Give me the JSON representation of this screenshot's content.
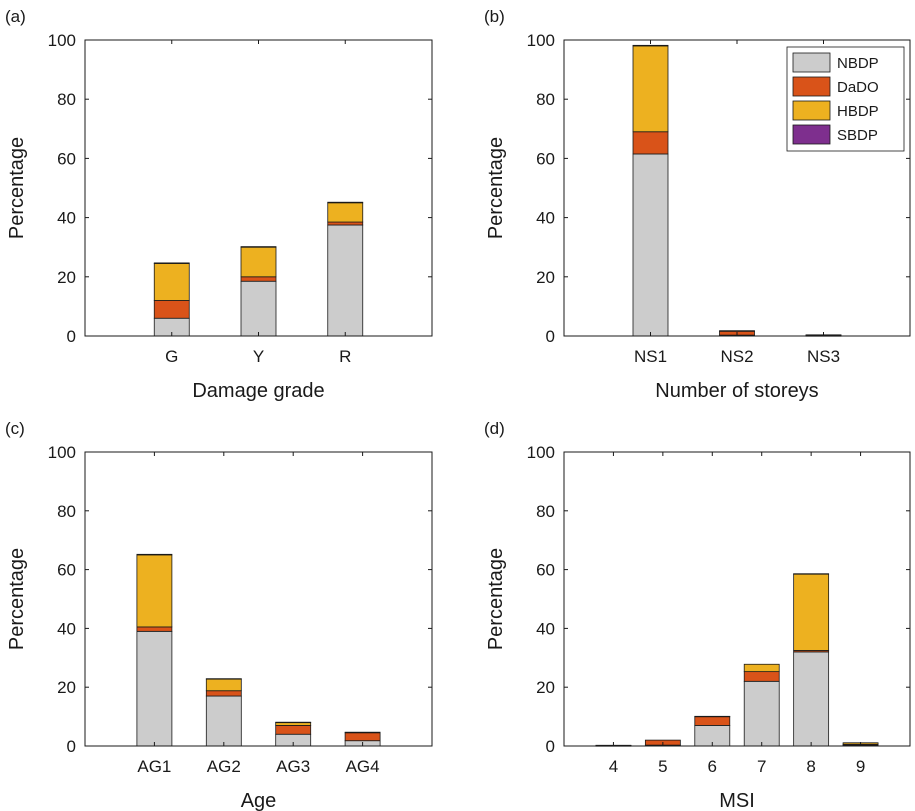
{
  "colors": {
    "NBDP": "#cccccc",
    "DaDO": "#d95319",
    "HBDP": "#edb120",
    "SBDP": "#7e2f8e"
  },
  "legend": {
    "placement": "top-right",
    "entries": [
      "NBDP",
      "DaDO",
      "HBDP",
      "SBDP"
    ]
  },
  "chart_data": [
    {
      "type": "bar",
      "stacked": true,
      "panel_label": "(a)",
      "xlabel": "Damage grade",
      "ylabel": "Percentage",
      "ylim": [
        0,
        100
      ],
      "yticks": [
        "0",
        "20",
        "40",
        "60",
        "80",
        "100"
      ],
      "categories": [
        "G",
        "Y",
        "R"
      ],
      "xlim": [
        0,
        4
      ],
      "series": [
        {
          "name": "NBDP",
          "values": [
            6,
            18.5,
            37.5
          ]
        },
        {
          "name": "DaDO",
          "values": [
            6,
            1.5,
            1
          ]
        },
        {
          "name": "HBDP",
          "values": [
            12.5,
            10,
            6.5
          ]
        },
        {
          "name": "SBDP",
          "values": [
            0.2,
            0.2,
            0.2
          ]
        }
      ]
    },
    {
      "type": "bar",
      "stacked": true,
      "panel_label": "(b)",
      "xlabel": "Number of storeys",
      "ylabel": "Percentage",
      "ylim": [
        0,
        100
      ],
      "yticks": [
        "0",
        "20",
        "40",
        "60",
        "80",
        "100"
      ],
      "categories": [
        "NS1",
        "NS2",
        "NS3"
      ],
      "xlim": [
        0,
        4
      ],
      "legend": true,
      "series": [
        {
          "name": "NBDP",
          "values": [
            61.5,
            0.3,
            0.1
          ]
        },
        {
          "name": "DaDO",
          "values": [
            7.5,
            1.3,
            0.2
          ]
        },
        {
          "name": "HBDP",
          "values": [
            29,
            0.2,
            0.1
          ]
        },
        {
          "name": "SBDP",
          "values": [
            0.2,
            0,
            0
          ]
        }
      ]
    },
    {
      "type": "bar",
      "stacked": true,
      "panel_label": "(c)",
      "xlabel": "Age",
      "ylabel": "Percentage",
      "ylim": [
        0,
        100
      ],
      "yticks": [
        "0",
        "20",
        "40",
        "60",
        "80",
        "100"
      ],
      "categories": [
        "AG1",
        "AG2",
        "AG3",
        "AG4"
      ],
      "xlim": [
        0,
        5
      ],
      "series": [
        {
          "name": "NBDP",
          "values": [
            39,
            17,
            4,
            1.8
          ]
        },
        {
          "name": "DaDO",
          "values": [
            1.5,
            1.8,
            3,
            2.7
          ]
        },
        {
          "name": "HBDP",
          "values": [
            24.5,
            4,
            1,
            0.2
          ]
        },
        {
          "name": "SBDP",
          "values": [
            0.2,
            0.1,
            0.1,
            0
          ]
        }
      ]
    },
    {
      "type": "bar",
      "stacked": true,
      "panel_label": "(d)",
      "xlabel": "MSI",
      "ylabel": "Percentage",
      "ylim": [
        0,
        100
      ],
      "yticks": [
        "0",
        "20",
        "40",
        "60",
        "80",
        "100"
      ],
      "categories": [
        "4",
        "5",
        "6",
        "7",
        "8",
        "9"
      ],
      "xlim": [
        3,
        10
      ],
      "series": [
        {
          "name": "NBDP",
          "values": [
            0.1,
            0.3,
            7,
            22,
            32,
            0.3
          ]
        },
        {
          "name": "DaDO",
          "values": [
            0.1,
            1.7,
            3,
            3.3,
            0.5,
            0.3
          ]
        },
        {
          "name": "HBDP",
          "values": [
            0.05,
            0,
            0.1,
            2.5,
            26,
            0.5
          ]
        },
        {
          "name": "SBDP",
          "values": [
            0,
            0,
            0,
            0,
            0.1,
            0
          ]
        }
      ]
    }
  ]
}
